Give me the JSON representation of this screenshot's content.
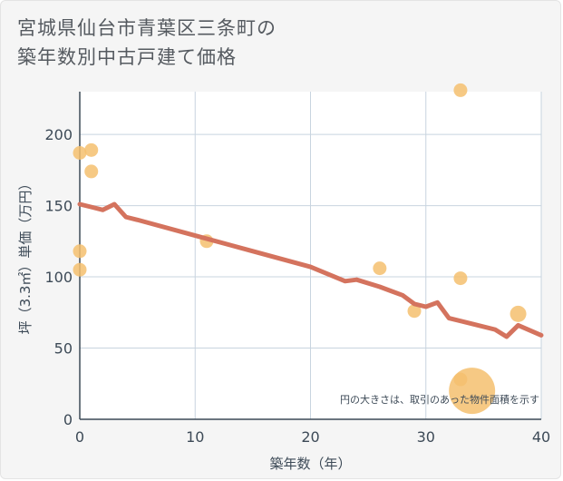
{
  "title_line1": "宮城県仙台市青葉区三条町の",
  "title_line2": "築年数別中古戸建て価格",
  "chart_data": {
    "type": "scatter",
    "title": "宮城県仙台市青葉区三条町の築年数別中古戸建て価格",
    "xlabel": "築年数（年）",
    "ylabel": "坪（3.3㎡）単価（万円）",
    "xlim": [
      0,
      40
    ],
    "ylim": [
      0,
      230
    ],
    "x_ticks": [
      "0",
      "10",
      "20",
      "30",
      "40"
    ],
    "y_ticks": [
      "0",
      "50",
      "100",
      "150",
      "200"
    ],
    "grid": true,
    "note": "円の大きさは、取引のあった物件面積を示す",
    "colors": {
      "points": "#f5c06e",
      "line": "#d4735e",
      "plot_bg": "#ffffff",
      "grid": "#c8d4df"
    },
    "series": [
      {
        "type": "scatter",
        "points": [
          {
            "x": 0,
            "y": 187,
            "size": 1
          },
          {
            "x": 1,
            "y": 189,
            "size": 1
          },
          {
            "x": 1,
            "y": 174,
            "size": 1
          },
          {
            "x": 0,
            "y": 118,
            "size": 1
          },
          {
            "x": 0,
            "y": 105,
            "size": 1
          },
          {
            "x": 11,
            "y": 125,
            "size": 1
          },
          {
            "x": 26,
            "y": 106,
            "size": 1
          },
          {
            "x": 29,
            "y": 76,
            "size": 1
          },
          {
            "x": 33,
            "y": 231,
            "size": 1
          },
          {
            "x": 33,
            "y": 99,
            "size": 1
          },
          {
            "x": 33,
            "y": 28,
            "size": 1
          },
          {
            "x": 34,
            "y": 20,
            "size": 3.4
          },
          {
            "x": 38,
            "y": 74,
            "size": 1.2
          }
        ]
      },
      {
        "type": "line",
        "points": [
          {
            "x": 0,
            "y": 151
          },
          {
            "x": 1,
            "y": 149
          },
          {
            "x": 2,
            "y": 147
          },
          {
            "x": 3,
            "y": 151
          },
          {
            "x": 4,
            "y": 142
          },
          {
            "x": 5,
            "y": 140
          },
          {
            "x": 10,
            "y": 129
          },
          {
            "x": 15,
            "y": 118
          },
          {
            "x": 20,
            "y": 107
          },
          {
            "x": 23,
            "y": 97
          },
          {
            "x": 24,
            "y": 98
          },
          {
            "x": 26,
            "y": 93
          },
          {
            "x": 27,
            "y": 90
          },
          {
            "x": 28,
            "y": 87
          },
          {
            "x": 29,
            "y": 81
          },
          {
            "x": 30,
            "y": 79
          },
          {
            "x": 31,
            "y": 82
          },
          {
            "x": 32,
            "y": 71
          },
          {
            "x": 34,
            "y": 67
          },
          {
            "x": 36,
            "y": 63
          },
          {
            "x": 37,
            "y": 58
          },
          {
            "x": 38,
            "y": 66
          },
          {
            "x": 40,
            "y": 59
          }
        ]
      }
    ]
  }
}
